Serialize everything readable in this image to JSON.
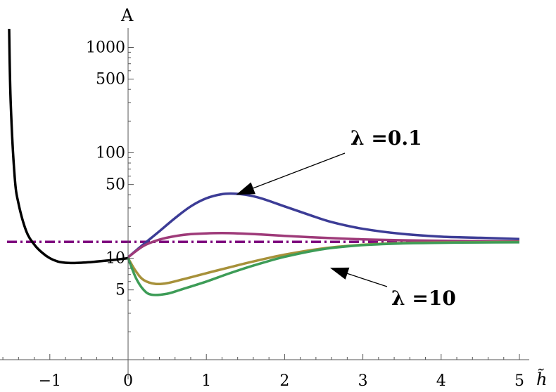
{
  "chart_data": {
    "type": "line",
    "xlabel": "h̃",
    "ylabel": "A",
    "xlim": [
      -1.6,
      5.0
    ],
    "ylim": [
      1,
      1500
    ],
    "y_scale": "log",
    "x_ticks": [
      -1,
      0,
      1,
      2,
      3,
      4,
      5
    ],
    "x_tick_labels": [
      "−1",
      "0",
      "1",
      "2",
      "3",
      "4",
      "5"
    ],
    "y_ticks": [
      5,
      10,
      50,
      100,
      500,
      1000
    ],
    "y_tick_labels": [
      "5",
      "10",
      "50",
      "100",
      "500",
      "1000"
    ],
    "grid": false,
    "reference_line": {
      "y": 14.3,
      "style": "dash-dot",
      "color": "#7f0a7f"
    },
    "series": [
      {
        "color": "#000000",
        "x": [
          -1.52,
          -1.5,
          -1.45,
          -1.4,
          -1.3,
          -1.2,
          -1.1,
          -1.0,
          -0.9,
          -0.8,
          -0.7,
          -0.6,
          -0.5,
          -0.4,
          -0.3,
          -0.2,
          -0.1,
          0.0
        ],
        "y": [
          1500,
          300,
          60,
          33,
          18,
          13.5,
          11.3,
          10.0,
          9.3,
          9.05,
          9.0,
          9.05,
          9.15,
          9.3,
          9.45,
          9.6,
          9.8,
          10.0
        ]
      },
      {
        "color": "#3c3c96",
        "x": [
          0,
          0.2,
          0.4,
          0.6,
          0.8,
          1.0,
          1.2,
          1.35,
          1.5,
          1.7,
          2.0,
          2.3,
          2.6,
          3.0,
          3.5,
          4.0,
          4.5,
          5.0
        ],
        "y": [
          10.2,
          13.6,
          18,
          24,
          31,
          37,
          40.5,
          41,
          40,
          37,
          31,
          26,
          22,
          19,
          17,
          16,
          15.6,
          15.2
        ]
      },
      {
        "color": "#9e3a79",
        "x": [
          0,
          0.2,
          0.4,
          0.6,
          0.8,
          1.0,
          1.2,
          1.4,
          1.7,
          2.0,
          2.5,
          3.0,
          3.5,
          4.0,
          5.0
        ],
        "y": [
          10.2,
          13.1,
          15,
          16.2,
          16.9,
          17.2,
          17.3,
          17.2,
          16.8,
          16.3,
          15.6,
          15.1,
          14.8,
          14.6,
          14.4
        ]
      },
      {
        "color": "#a7913a",
        "x": [
          0,
          0.1,
          0.2,
          0.35,
          0.5,
          0.7,
          1.0,
          1.3,
          1.6,
          2.0,
          2.5,
          3.0,
          3.5,
          4.0,
          4.5,
          5.0
        ],
        "y": [
          10.0,
          7.5,
          6.2,
          5.7,
          5.8,
          6.3,
          7.2,
          8.2,
          9.3,
          10.8,
          12.4,
          13.4,
          13.9,
          14.1,
          14.2,
          14.25
        ]
      },
      {
        "color": "#3d9c57",
        "x": [
          0,
          0.1,
          0.2,
          0.3,
          0.5,
          0.7,
          1.0,
          1.3,
          1.6,
          2.0,
          2.5,
          3.0,
          3.5,
          4.0,
          4.5,
          5.0
        ],
        "y": [
          10.0,
          6.5,
          5.0,
          4.5,
          4.6,
          5.1,
          6.0,
          7.2,
          8.5,
          10.3,
          12.2,
          13.3,
          13.8,
          14.0,
          14.1,
          14.15
        ]
      }
    ],
    "annotations": [
      {
        "text": "λ =0.1",
        "points_to": [
          1.38,
          40
        ]
      },
      {
        "text": "λ =10",
        "points_to": [
          2.58,
          8.1
        ]
      }
    ]
  }
}
